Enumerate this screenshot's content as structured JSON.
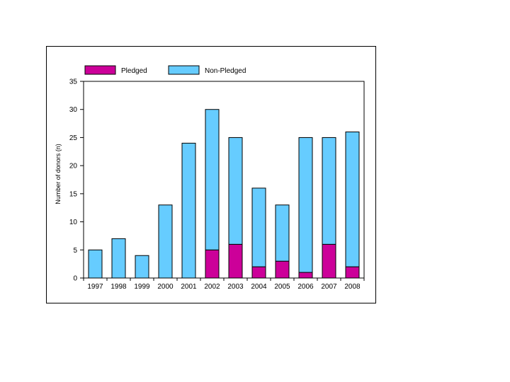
{
  "chart_data": {
    "type": "bar",
    "stacked": true,
    "title": "",
    "xlabel": "",
    "ylabel": "Number of donors (n)",
    "ylim": [
      0,
      35
    ],
    "yticks": [
      0,
      5,
      10,
      15,
      20,
      25,
      30,
      35
    ],
    "categories": [
      "1997",
      "1998",
      "1999",
      "2000",
      "2001",
      "2002",
      "2003",
      "2004",
      "2005",
      "2006",
      "2007",
      "2008"
    ],
    "series": [
      {
        "name": "Pledged",
        "color": "#cc0099",
        "values": [
          0,
          0,
          0,
          0,
          0,
          5,
          6,
          2,
          3,
          1,
          6,
          2
        ]
      },
      {
        "name": "Non-Pledged",
        "color": "#66ccff",
        "values": [
          5,
          7,
          4,
          13,
          24,
          25,
          19,
          14,
          10,
          24,
          19,
          24
        ]
      }
    ],
    "legend_position": "top",
    "grid": false
  }
}
